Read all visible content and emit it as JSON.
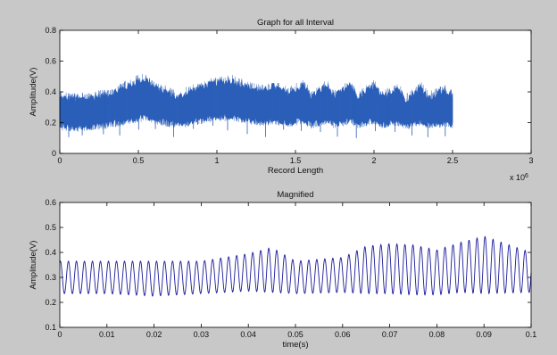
{
  "figure": {
    "background": "#c8c8c8"
  },
  "chart_data": [
    {
      "type": "area",
      "title": "Graph for all Interval",
      "xlabel": "Record Length",
      "ylabel": "Amplitude(V)",
      "x_multiplier_label": "x 10^6",
      "xlim": [
        0,
        3
      ],
      "ylim": [
        0,
        0.8
      ],
      "xticks": [
        0,
        0.5,
        1,
        1.5,
        2,
        2.5,
        3
      ],
      "yticks": [
        0,
        0.2,
        0.4,
        0.6,
        0.8
      ],
      "grid": false,
      "color": "#2b5fb8",
      "series": [
        {
          "x": [
            0,
            0.1,
            0.2,
            0.3,
            0.4,
            0.5,
            0.55,
            0.6,
            0.7,
            0.75,
            0.8,
            0.9,
            1.0,
            1.1,
            1.2,
            1.3,
            1.35,
            1.45,
            1.55,
            1.6,
            1.7,
            1.75,
            1.85,
            1.9,
            2.0,
            2.05,
            2.15,
            2.2,
            2.3,
            2.35,
            2.45,
            2.5
          ],
          "upper": [
            0.36,
            0.35,
            0.36,
            0.38,
            0.42,
            0.47,
            0.48,
            0.43,
            0.39,
            0.36,
            0.39,
            0.43,
            0.46,
            0.47,
            0.43,
            0.4,
            0.44,
            0.39,
            0.44,
            0.37,
            0.44,
            0.37,
            0.44,
            0.36,
            0.44,
            0.36,
            0.43,
            0.35,
            0.43,
            0.36,
            0.41,
            0.37
          ],
          "lower": [
            0.18,
            0.17,
            0.18,
            0.19,
            0.21,
            0.23,
            0.24,
            0.22,
            0.2,
            0.19,
            0.2,
            0.22,
            0.24,
            0.24,
            0.22,
            0.2,
            0.22,
            0.2,
            0.22,
            0.19,
            0.22,
            0.19,
            0.22,
            0.19,
            0.22,
            0.19,
            0.21,
            0.18,
            0.21,
            0.19,
            0.2,
            0.19
          ]
        }
      ]
    },
    {
      "type": "line",
      "title": "Magnified",
      "xlabel": "time(s)",
      "ylabel": "Amplitude(V)",
      "xlim": [
        0,
        0.1
      ],
      "ylim": [
        0.1,
        0.6
      ],
      "xticks": [
        0,
        0.01,
        0.02,
        0.03,
        0.04,
        0.05,
        0.06,
        0.07,
        0.08,
        0.09,
        0.1
      ],
      "yticks": [
        0.1,
        0.2,
        0.3,
        0.4,
        0.5,
        0.6
      ],
      "grid": false,
      "color": "#1a1a9a",
      "period_s": 0.0017,
      "series": [
        {
          "x": [
            0,
            0.01,
            0.02,
            0.03,
            0.04,
            0.045,
            0.05,
            0.06,
            0.065,
            0.07,
            0.075,
            0.08,
            0.085,
            0.09,
            0.1
          ],
          "center": [
            0.3,
            0.3,
            0.295,
            0.3,
            0.32,
            0.33,
            0.3,
            0.31,
            0.33,
            0.335,
            0.33,
            0.32,
            0.34,
            0.35,
            0.32
          ],
          "amplitude": [
            0.065,
            0.065,
            0.07,
            0.065,
            0.075,
            0.09,
            0.065,
            0.07,
            0.095,
            0.1,
            0.1,
            0.09,
            0.1,
            0.115,
            0.08
          ]
        }
      ]
    }
  ]
}
